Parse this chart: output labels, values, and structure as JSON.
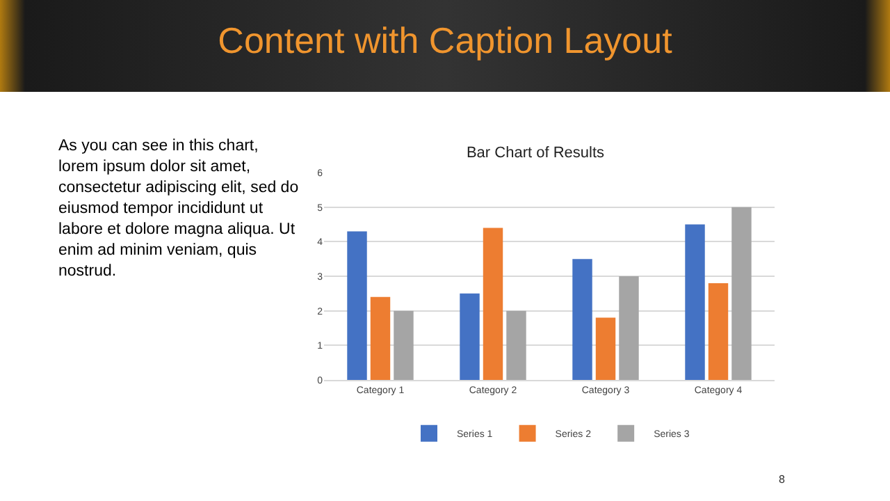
{
  "chart_data": {
    "type": "bar",
    "title": "Bar Chart of Results",
    "categories": [
      "Category 1",
      "Category 2",
      "Category 3",
      "Category 4"
    ],
    "series": [
      {
        "name": "Series 1",
        "color": "#4472c4",
        "values": [
          4.3,
          2.5,
          3.5,
          4.5
        ]
      },
      {
        "name": "Series 2",
        "color": "#ed7d31",
        "values": [
          2.4,
          4.4,
          1.8,
          2.8
        ]
      },
      {
        "name": "Series 3",
        "color": "#a5a5a5",
        "values": [
          2,
          2,
          3,
          5
        ]
      }
    ],
    "ylim": [
      0,
      6
    ],
    "yticks": [
      0,
      1,
      2,
      3,
      4,
      5,
      6
    ],
    "grid": "y",
    "legend": "bottom",
    "annotations": [
      "Content with Caption Layout",
      "As you can see in this chart, lorem ipsum dolor sit amet, consectetur adipiscing elit, sed do eiusmod tempor incididunt ut labore et dolore magna aliqua. Ut enim ad minim veniam, quis nostrud.",
      "8"
    ]
  }
}
